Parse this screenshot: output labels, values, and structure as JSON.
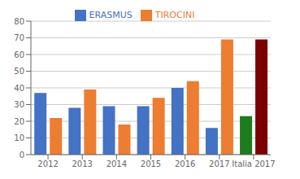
{
  "chart_data": {
    "type": "bar",
    "categories": [
      "2012",
      "2013",
      "2014",
      "2015",
      "2016",
      "2017",
      "Italia 2017"
    ],
    "series": [
      {
        "name": "ERASMUS",
        "color": "#4472c4",
        "colors": [
          "#4472c4",
          "#4472c4",
          "#4472c4",
          "#4472c4",
          "#4472c4",
          "#4472c4",
          "#1e7b1e"
        ],
        "values": [
          37,
          28,
          29,
          29,
          40,
          16,
          23
        ]
      },
      {
        "name": "TIROCINI",
        "color": "#ed7d31",
        "colors": [
          "#ed7d31",
          "#ed7d31",
          "#ed7d31",
          "#ed7d31",
          "#ed7d31",
          "#ed7d31",
          "#7b0000"
        ],
        "values": [
          22,
          39,
          18,
          34,
          44,
          69,
          69
        ]
      }
    ],
    "ylim": [
      0,
      80
    ],
    "yticks": [
      0,
      10,
      20,
      30,
      40,
      50,
      60,
      70,
      80
    ],
    "grid": true,
    "legend": "top"
  }
}
